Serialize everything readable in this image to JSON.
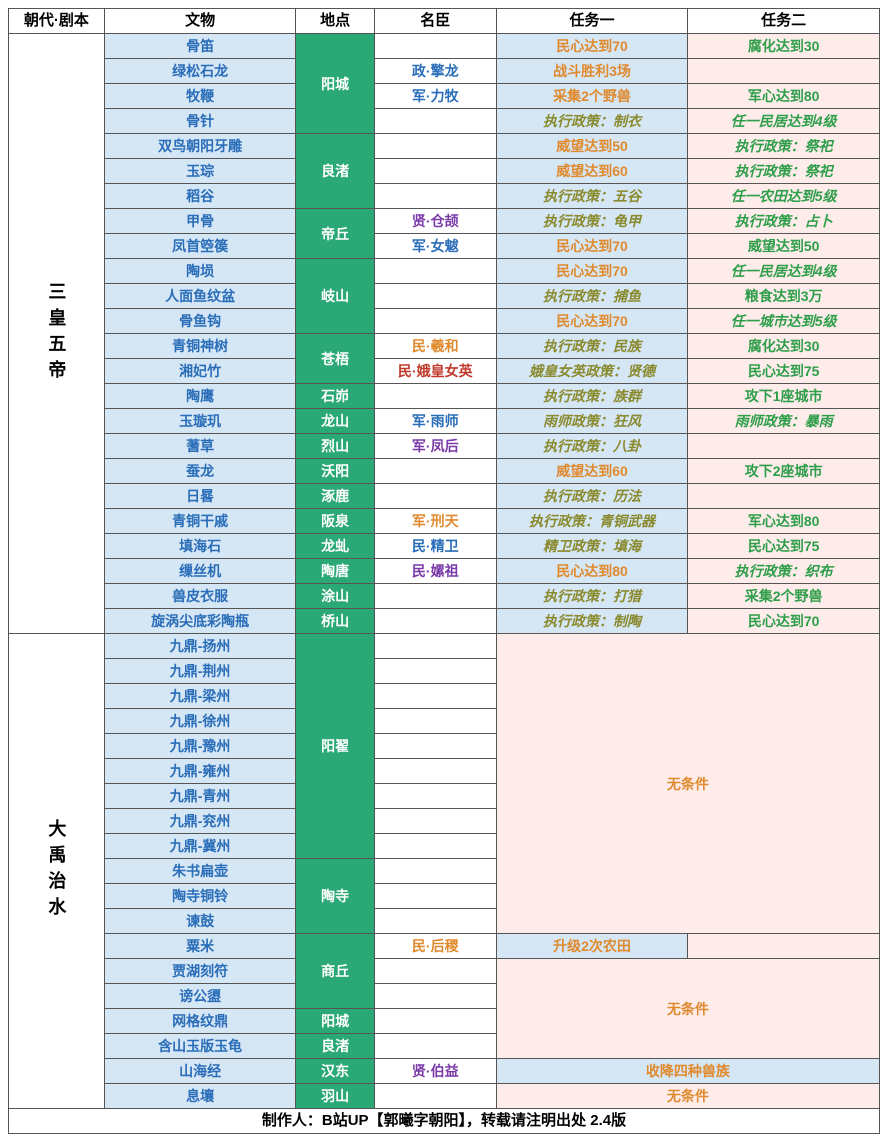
{
  "headers": [
    "朝代·剧本",
    "文物",
    "地点",
    "名臣",
    "任务一",
    "任务二"
  ],
  "era1": {
    "label": "三皇五帝"
  },
  "era2": {
    "label": "大禹治水"
  },
  "footer": "制作人：B站UP【郭曦字朝阳】，转载请注明出处 2.4版",
  "rows1": [
    {
      "artifact": "骨笛",
      "location": "阳城",
      "locRowspan": 4,
      "minister": "",
      "task1": {
        "text": "民心达到70",
        "cls": "c-orange"
      },
      "task2": {
        "text": "腐化达到30",
        "cls": "c-green",
        "bg": "task2-pink"
      }
    },
    {
      "artifact": "绿松石龙",
      "minister": "政·擎龙",
      "minCls": "c-blue",
      "task1": {
        "text": "战斗胜利3场",
        "cls": "c-orange"
      },
      "task2": {
        "text": "",
        "bg": "task2-pink"
      }
    },
    {
      "artifact": "牧鞭",
      "minister": "军·力牧",
      "minCls": "c-blue",
      "task1": {
        "text": "采集2个野兽",
        "cls": "c-orange"
      },
      "task2": {
        "text": "军心达到80",
        "cls": "c-green",
        "bg": "task2-pink"
      }
    },
    {
      "artifact": "骨针",
      "minister": "",
      "task1": {
        "text": "执行政策：制衣",
        "cls": "c-olive italic"
      },
      "task2": {
        "text": "任一民居达到4级",
        "cls": "c-green italic",
        "bg": "task2-pink"
      }
    },
    {
      "artifact": "双鸟朝阳牙雕",
      "location": "良渚",
      "locRowspan": 3,
      "minister": "",
      "task1": {
        "text": "威望达到50",
        "cls": "c-orange"
      },
      "task2": {
        "text": "执行政策：祭祀",
        "cls": "c-green italic",
        "bg": "task2-pink"
      }
    },
    {
      "artifact": "玉琮",
      "minister": "",
      "task1": {
        "text": "威望达到60",
        "cls": "c-orange"
      },
      "task2": {
        "text": "执行政策：祭祀",
        "cls": "c-green italic",
        "bg": "task2-pink"
      }
    },
    {
      "artifact": "稻谷",
      "minister": "",
      "task1": {
        "text": "执行政策：五谷",
        "cls": "c-olive italic"
      },
      "task2": {
        "text": "任一农田达到5级",
        "cls": "c-green italic",
        "bg": "task2-pink"
      }
    },
    {
      "artifact": "甲骨",
      "location": "帝丘",
      "locRowspan": 2,
      "minister": "贤·仓颉",
      "minCls": "c-purple",
      "task1": {
        "text": "执行政策：龟甲",
        "cls": "c-olive italic"
      },
      "task2": {
        "text": "执行政策：占卜",
        "cls": "c-green italic",
        "bg": "task2-pink"
      }
    },
    {
      "artifact": "凤首箜篌",
      "minister": "军·女魃",
      "minCls": "c-blue",
      "task1": {
        "text": "民心达到70",
        "cls": "c-orange"
      },
      "task2": {
        "text": "威望达到50",
        "cls": "c-green",
        "bg": "task2-pink"
      }
    },
    {
      "artifact": "陶埙",
      "location": "岐山",
      "locRowspan": 3,
      "minister": "",
      "task1": {
        "text": "民心达到70",
        "cls": "c-orange"
      },
      "task2": {
        "text": "任一民居达到4级",
        "cls": "c-green italic",
        "bg": "task2-pink"
      }
    },
    {
      "artifact": "人面鱼纹盆",
      "minister": "",
      "task1": {
        "text": "执行政策：捕鱼",
        "cls": "c-olive italic"
      },
      "task2": {
        "text": "粮食达到3万",
        "cls": "c-green",
        "bg": "task2-pink"
      }
    },
    {
      "artifact": "骨鱼钩",
      "minister": "",
      "task1": {
        "text": "民心达到70",
        "cls": "c-orange"
      },
      "task2": {
        "text": "任一城市达到5级",
        "cls": "c-green italic",
        "bg": "task2-pink"
      }
    },
    {
      "artifact": "青铜神树",
      "location": "苍梧",
      "locRowspan": 2,
      "minister": "民·羲和",
      "minCls": "c-orange",
      "task1": {
        "text": "执行政策：民族",
        "cls": "c-olive italic"
      },
      "task2": {
        "text": "腐化达到30",
        "cls": "c-green",
        "bg": "task2-pink"
      }
    },
    {
      "artifact": "湘妃竹",
      "minister": "民·娥皇女英",
      "minCls": "c-darkred",
      "task1": {
        "text": "娥皇女英政策：贤德",
        "cls": "c-olive italic"
      },
      "task2": {
        "text": "民心达到75",
        "cls": "c-green",
        "bg": "task2-pink"
      }
    },
    {
      "artifact": "陶鹰",
      "location": "石峁",
      "locRowspan": 1,
      "minister": "",
      "task1": {
        "text": "执行政策：族群",
        "cls": "c-olive italic"
      },
      "task2": {
        "text": "攻下1座城市",
        "cls": "c-green",
        "bg": "task2-pink"
      }
    },
    {
      "artifact": "玉璇玑",
      "location": "龙山",
      "locRowspan": 1,
      "minister": "军·雨师",
      "minCls": "c-blue",
      "task1": {
        "text": "雨师政策：狂风",
        "cls": "c-olive italic"
      },
      "task2": {
        "text": "雨师政策：暴雨",
        "cls": "c-green italic",
        "bg": "task2-pink"
      }
    },
    {
      "artifact": "蓍草",
      "location": "烈山",
      "locRowspan": 1,
      "minister": "军·凤后",
      "minCls": "c-purple",
      "task1": {
        "text": "执行政策：八卦",
        "cls": "c-olive italic"
      },
      "task2": {
        "text": "",
        "bg": "task2-pink"
      }
    },
    {
      "artifact": "蚕龙",
      "location": "沃阳",
      "locRowspan": 1,
      "minister": "",
      "task1": {
        "text": "威望达到60",
        "cls": "c-orange"
      },
      "task2": {
        "text": "攻下2座城市",
        "cls": "c-green",
        "bg": "task2-pink"
      }
    },
    {
      "artifact": "日晷",
      "location": "涿鹿",
      "locRowspan": 1,
      "minister": "",
      "task1": {
        "text": "执行政策：历法",
        "cls": "c-olive italic"
      },
      "task2": {
        "text": "",
        "bg": "task2-pink"
      }
    },
    {
      "artifact": "青铜干戚",
      "location": "阪泉",
      "locRowspan": 1,
      "minister": "军·刑天",
      "minCls": "c-orange",
      "task1": {
        "text": "执行政策：青铜武器",
        "cls": "c-olive italic"
      },
      "task2": {
        "text": "军心达到80",
        "cls": "c-green",
        "bg": "task2-pink"
      }
    },
    {
      "artifact": "填海石",
      "location": "龙虬",
      "locRowspan": 1,
      "minister": "民·精卫",
      "minCls": "c-blue",
      "task1": {
        "text": "精卫政策：填海",
        "cls": "c-olive italic"
      },
      "task2": {
        "text": "民心达到75",
        "cls": "c-green",
        "bg": "task2-pink"
      }
    },
    {
      "artifact": "缫丝机",
      "location": "陶唐",
      "locRowspan": 1,
      "minister": "民·嫘祖",
      "minCls": "c-purple",
      "task1": {
        "text": "民心达到80",
        "cls": "c-orange"
      },
      "task2": {
        "text": "执行政策：织布",
        "cls": "c-green italic",
        "bg": "task2-pink"
      }
    },
    {
      "artifact": "兽皮衣服",
      "location": "涂山",
      "locRowspan": 1,
      "minister": "",
      "task1": {
        "text": "执行政策：打猎",
        "cls": "c-olive italic"
      },
      "task2": {
        "text": "采集2个野兽",
        "cls": "c-green",
        "bg": "task2-pink"
      }
    },
    {
      "artifact": "旋涡尖底彩陶瓶",
      "location": "桥山",
      "locRowspan": 1,
      "minister": "",
      "task1": {
        "text": "执行政策：制陶",
        "cls": "c-olive italic"
      },
      "task2": {
        "text": "民心达到70",
        "cls": "c-green",
        "bg": "task2-pink"
      }
    }
  ],
  "rows2": [
    {
      "artifact": "九鼎-扬州",
      "location": "阳翟",
      "locRowspan": 9,
      "minister": "",
      "noCondRowspan": 12,
      "noCondText": "无条件"
    },
    {
      "artifact": "九鼎-荆州",
      "minister": ""
    },
    {
      "artifact": "九鼎-梁州",
      "minister": ""
    },
    {
      "artifact": "九鼎-徐州",
      "minister": ""
    },
    {
      "artifact": "九鼎-豫州",
      "minister": ""
    },
    {
      "artifact": "九鼎-雍州",
      "minister": ""
    },
    {
      "artifact": "九鼎-青州",
      "minister": ""
    },
    {
      "artifact": "九鼎-兖州",
      "minister": ""
    },
    {
      "artifact": "九鼎-冀州",
      "minister": ""
    },
    {
      "artifact": "朱书扁壶",
      "location": "陶寺",
      "locRowspan": 3,
      "minister": ""
    },
    {
      "artifact": "陶寺铜铃",
      "minister": ""
    },
    {
      "artifact": "谏鼓",
      "minister": ""
    },
    {
      "artifact": "粟米",
      "location": "商丘",
      "locRowspan": 3,
      "minister": "民·后稷",
      "minCls": "c-orange",
      "task1": {
        "text": "升级2次农田",
        "cls": "c-orange"
      },
      "task2": {
        "text": "",
        "bg": "task2-pink"
      }
    },
    {
      "artifact": "贾湖刻符",
      "minister": "",
      "noCondRowspan": 4,
      "noCondText": "无条件"
    },
    {
      "artifact": "谤公盨",
      "minister": ""
    },
    {
      "artifact": "网格纹鼎",
      "location": "阳城",
      "locRowspan": 1,
      "minister": ""
    },
    {
      "artifact": "含山玉版玉龟",
      "location": "良渚",
      "locRowspan": 1,
      "minister": ""
    },
    {
      "artifact": "山海经",
      "location": "汉东",
      "locRowspan": 1,
      "minister": "贤·伯益",
      "minCls": "c-purple",
      "taskSpan": {
        "text": "收降四种兽族",
        "cls": "c-orange",
        "bg": "task1"
      }
    },
    {
      "artifact": "息壤",
      "location": "羽山",
      "locRowspan": 1,
      "minister": "",
      "taskSpan": {
        "text": "无条件",
        "cls": "c-orange",
        "bg": "task2-pink"
      }
    }
  ]
}
